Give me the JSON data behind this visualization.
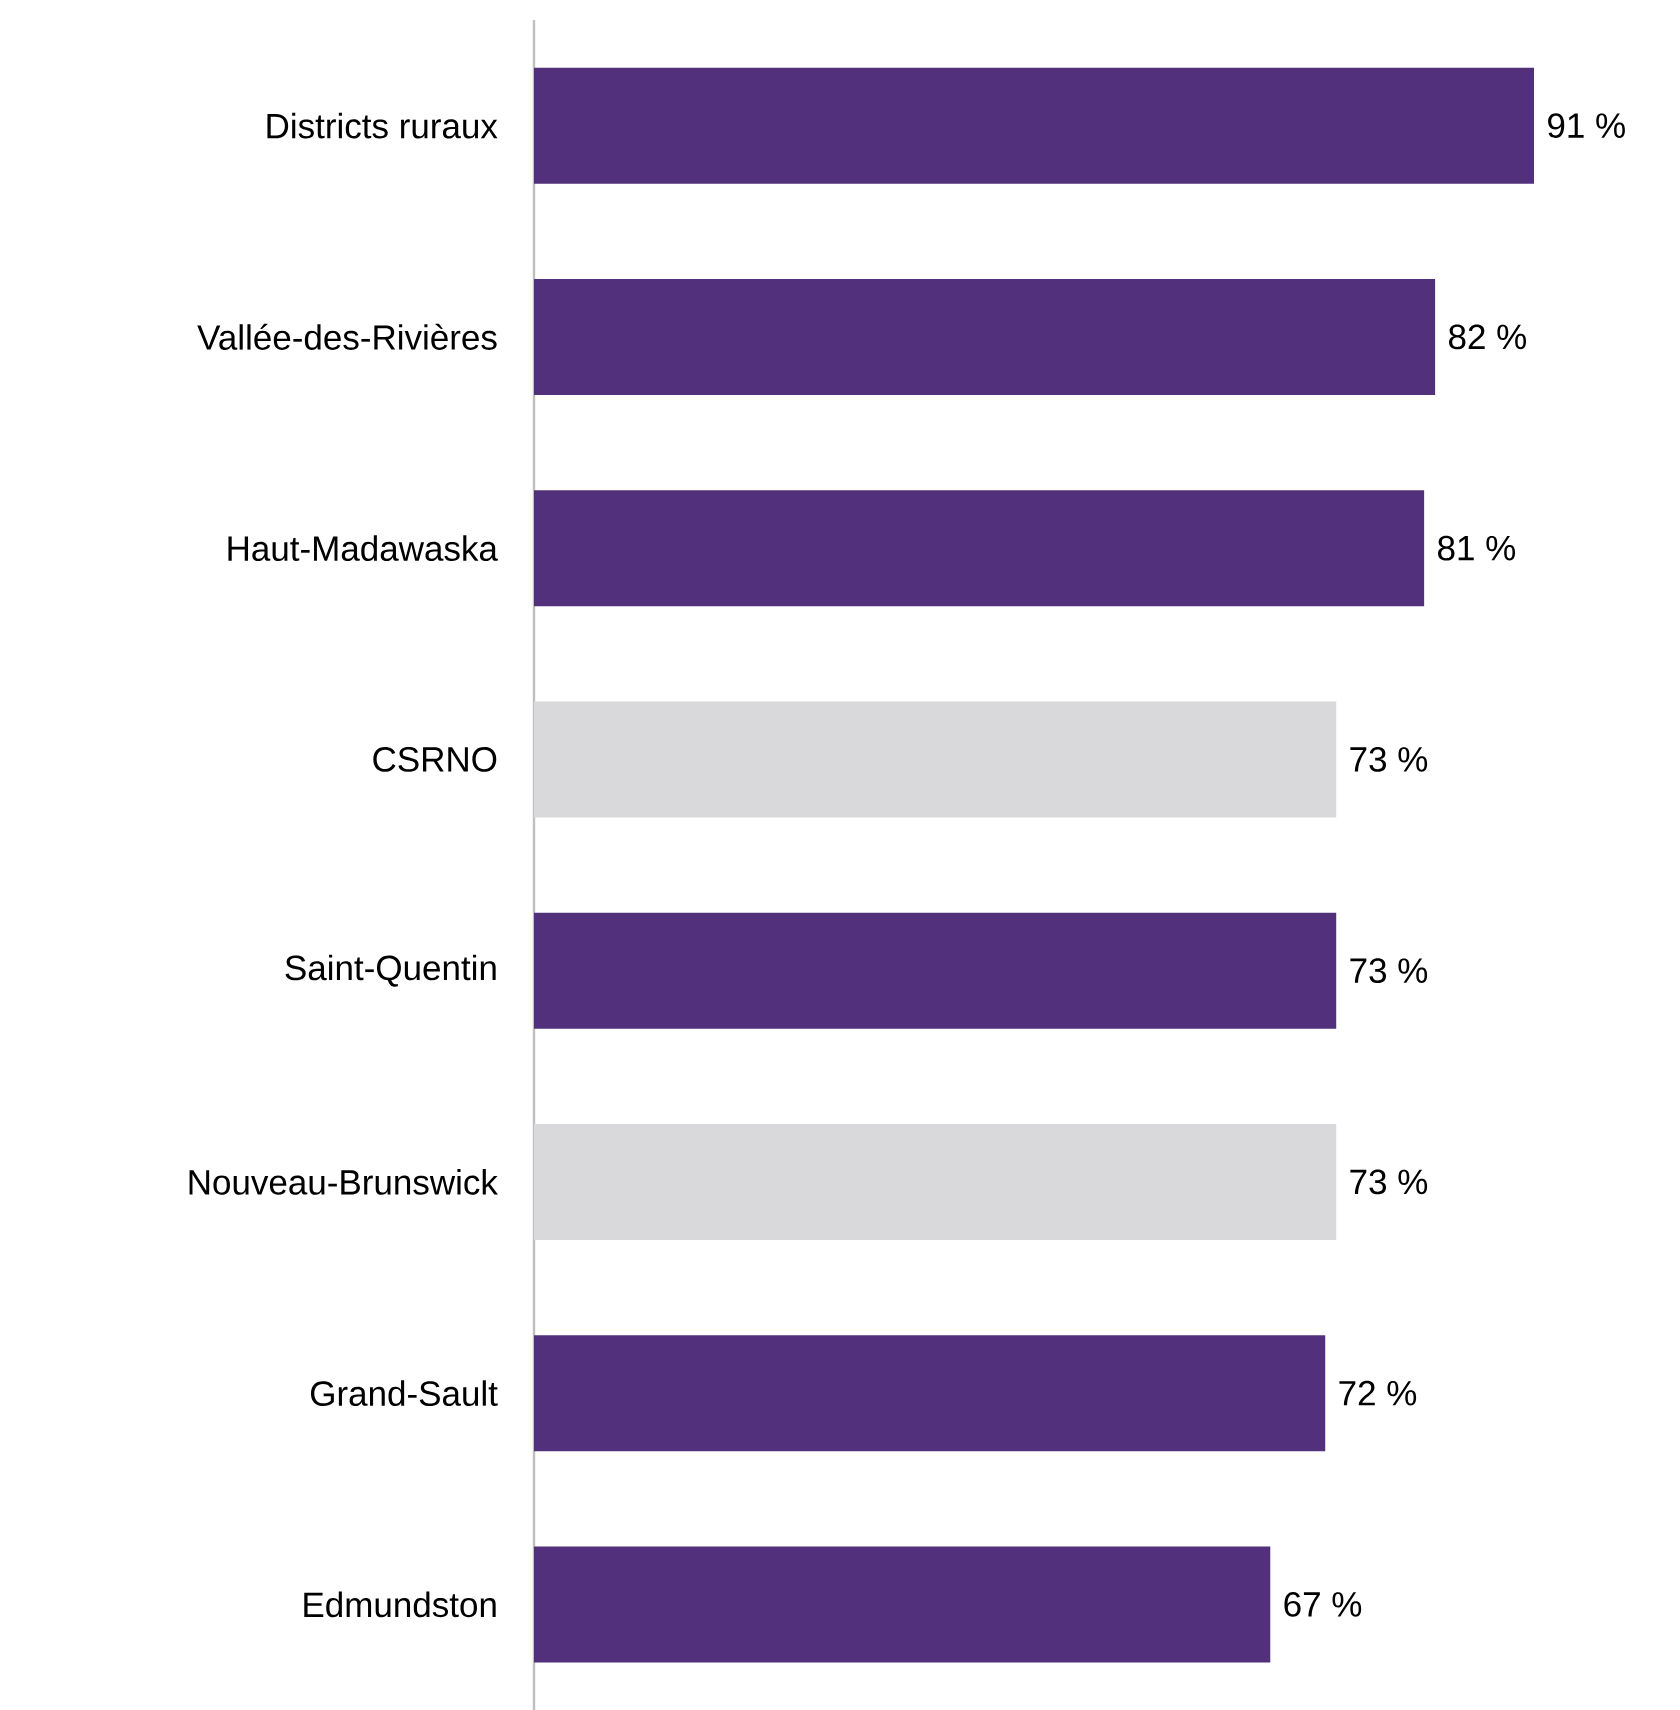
{
  "chart_data": {
    "type": "bar",
    "orientation": "horizontal",
    "categories": [
      "Districts ruraux",
      "Vallée-des-Rivières",
      "Haut-Madawaska",
      "CSRNO",
      "Saint-Quentin",
      "Nouveau-Brunswick",
      "Grand-Sault",
      "Edmundston"
    ],
    "values": [
      91,
      82,
      81,
      73,
      73,
      73,
      72,
      67
    ],
    "colors": [
      "#52307c",
      "#52307c",
      "#52307c",
      "#d9d9db",
      "#52307c",
      "#d9d9db",
      "#52307c",
      "#52307c"
    ],
    "value_labels": [
      "91 %",
      "82 %",
      "81 %",
      "73 %",
      "73 %",
      "73 %",
      "72 %",
      "67 %"
    ]
  }
}
